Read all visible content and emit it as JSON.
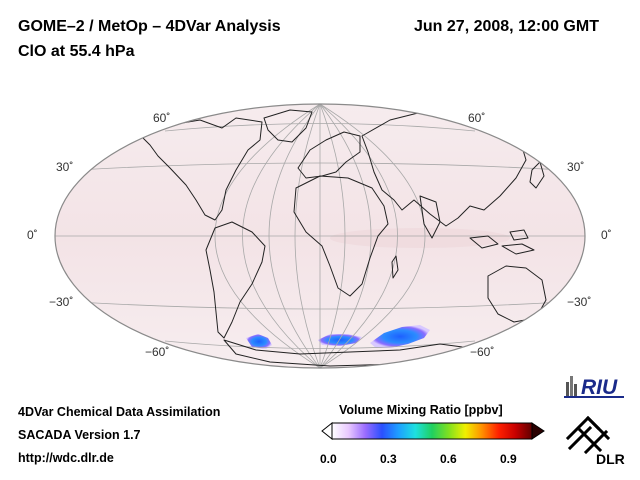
{
  "header": {
    "title_line1": "GOME–2 / MetOp – 4DVar Analysis",
    "title_line2": "ClO at 55.4 hPa",
    "datetime": "Jun 27, 2008, 12:00 GMT"
  },
  "map": {
    "projection": "Hammer-Aitoff (global, oval)",
    "latitude_labels": {
      "p60": "60˚",
      "p30": "30˚",
      "eq": "0˚",
      "m30": "−30˚",
      "m60": "−60˚"
    },
    "background_color": "#f8f0f1",
    "tint_color": "#f2e2e4",
    "enhancement_colors": [
      "#1e78ff",
      "#8a6cff",
      "#ffffff"
    ]
  },
  "logos": {
    "riu": "RIU",
    "dlr": "DLR"
  },
  "footer": {
    "line1": "4DVar Chemical Data Assimilation",
    "line2": "SACADA Version 1.7",
    "line3": "http://wdc.dlr.de"
  },
  "colorbar": {
    "title": "Volume Mixing Ratio [ppbv]",
    "ticks": [
      "0.0",
      "0.3",
      "0.6",
      "0.9"
    ],
    "range": [
      0.0,
      1.0
    ],
    "stops": [
      "#ffffff",
      "#e8c8ff",
      "#9a6cff",
      "#2a50ff",
      "#1ea0ff",
      "#1ee0e0",
      "#20d060",
      "#80e020",
      "#f0f000",
      "#ff9000",
      "#ff2000",
      "#c80000",
      "#600000"
    ]
  }
}
